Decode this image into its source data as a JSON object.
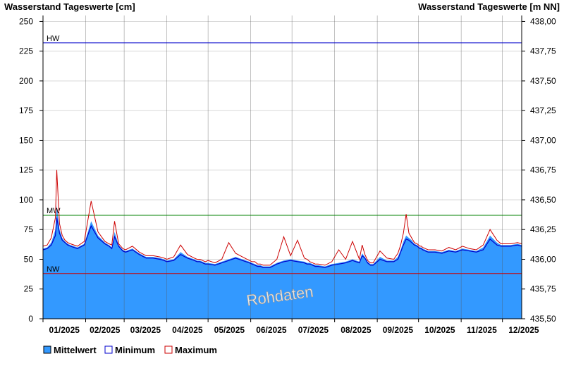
{
  "chart_data": {
    "type": "area",
    "title_left": "Wasserstand Tageswerte [cm]",
    "title_right": "Wasserstand Tageswerte [m NN]",
    "watermark": "Rohdaten",
    "ylim": [
      0,
      255
    ],
    "y_ticks": [
      "0",
      "25",
      "50",
      "75",
      "100",
      "125",
      "150",
      "175",
      "200",
      "225",
      "250"
    ],
    "y2_ticks": [
      "435,50",
      "435,75",
      "436,00",
      "436,25",
      "436,50",
      "436,75",
      "437,00",
      "437,25",
      "437,50",
      "437,75",
      "438,00"
    ],
    "months": [
      "01/2025",
      "02/2025",
      "03/2025",
      "04/2025",
      "05/2025",
      "06/2025",
      "07/2025",
      "08/2025",
      "09/2025",
      "10/2025",
      "11/2025",
      "12/2025"
    ],
    "reference_lines": [
      {
        "label": "HW",
        "value": 232,
        "color": "#0000cc"
      },
      {
        "label": "MW",
        "value": 87,
        "color": "#008000"
      },
      {
        "label": "NW",
        "value": 38,
        "color": "#cc0000"
      }
    ],
    "x_days": [
      0,
      3,
      6,
      9,
      10,
      12,
      14,
      16,
      18,
      20,
      25,
      30,
      35,
      40,
      45,
      48,
      50,
      52,
      55,
      58,
      60,
      65,
      70,
      75,
      80,
      85,
      88,
      90,
      95,
      100,
      105,
      110,
      112,
      114,
      116,
      118,
      120,
      125,
      130,
      135,
      140,
      145,
      150,
      152,
      154,
      156,
      158,
      160,
      165,
      170,
      175,
      180,
      185,
      190,
      192,
      194,
      196,
      198,
      200,
      205,
      210,
      215,
      220,
      225,
      230,
      232,
      234,
      236,
      238,
      240,
      245,
      250,
      255,
      258,
      260,
      262,
      264,
      266,
      268,
      270,
      272,
      274,
      275,
      276,
      278,
      280,
      285,
      290,
      295,
      300,
      305,
      310,
      315,
      320,
      325,
      330,
      333,
      335,
      337,
      340,
      345,
      348
    ],
    "series": [
      {
        "name": "Mittelwert",
        "color": "#3399ff",
        "values": [
          59,
          60,
          64,
          75,
          95,
          75,
          68,
          65,
          63,
          62,
          60,
          63,
          82,
          70,
          64,
          62,
          60,
          73,
          62,
          58,
          57,
          59,
          55,
          52,
          52,
          51,
          50,
          49,
          50,
          56,
          52,
          50,
          49,
          49,
          48,
          47,
          47,
          46,
          48,
          50,
          52,
          50,
          48,
          47,
          46,
          45,
          45,
          44,
          44,
          47,
          49,
          50,
          49,
          48,
          47,
          47,
          46,
          45,
          45,
          44,
          46,
          47,
          48,
          50,
          48,
          55,
          52,
          48,
          46,
          46,
          52,
          49,
          49,
          52,
          58,
          65,
          70,
          68,
          66,
          63,
          62,
          60,
          60,
          59,
          58,
          57,
          57,
          56,
          58,
          57,
          59,
          58,
          57,
          60,
          70,
          64,
          62,
          62,
          62,
          62,
          63,
          62
        ]
      },
      {
        "name": "Minimum",
        "color": "#0000cc",
        "values": [
          58,
          59,
          62,
          70,
          85,
          72,
          66,
          64,
          62,
          61,
          59,
          62,
          78,
          68,
          63,
          61,
          59,
          69,
          61,
          57,
          56,
          58,
          54,
          51,
          51,
          50,
          49,
          48,
          49,
          54,
          51,
          49,
          48,
          48,
          47,
          46,
          46,
          45,
          47,
          49,
          51,
          49,
          47,
          46,
          45,
          44,
          44,
          43,
          43,
          46,
          48,
          49,
          48,
          47,
          46,
          46,
          45,
          44,
          44,
          43,
          45,
          46,
          47,
          49,
          47,
          53,
          51,
          47,
          45,
          45,
          50,
          48,
          48,
          50,
          56,
          62,
          67,
          66,
          64,
          62,
          61,
          59,
          59,
          58,
          57,
          56,
          56,
          55,
          57,
          56,
          58,
          57,
          56,
          58,
          67,
          62,
          61,
          61,
          61,
          61,
          62,
          61
        ]
      },
      {
        "name": "Maximum",
        "color": "#cc0000",
        "values": [
          61,
          62,
          68,
          85,
          125,
          80,
          70,
          66,
          64,
          63,
          61,
          65,
          99,
          73,
          65,
          63,
          62,
          82,
          63,
          59,
          58,
          61,
          56,
          53,
          53,
          52,
          51,
          50,
          52,
          62,
          54,
          51,
          50,
          50,
          49,
          48,
          49,
          47,
          50,
          64,
          55,
          52,
          49,
          48,
          48,
          46,
          46,
          45,
          45,
          50,
          69,
          53,
          66,
          51,
          50,
          48,
          47,
          46,
          46,
          45,
          48,
          58,
          50,
          65,
          50,
          62,
          54,
          49,
          47,
          47,
          57,
          51,
          50,
          55,
          62,
          72,
          88,
          72,
          68,
          64,
          63,
          61,
          61,
          60,
          59,
          58,
          58,
          57,
          60,
          58,
          61,
          59,
          58,
          62,
          75,
          66,
          63,
          63,
          63,
          63,
          64,
          63
        ]
      }
    ],
    "legend": [
      "Mittelwert",
      "Minimum",
      "Maximum"
    ],
    "grid": true,
    "legend_position": "bottom-left"
  }
}
